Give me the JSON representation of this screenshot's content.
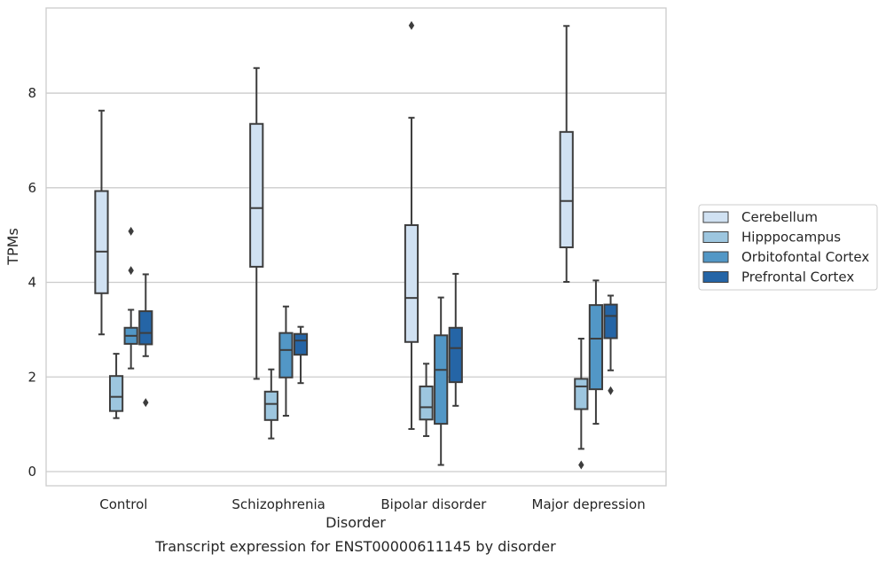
{
  "chart_data": {
    "type": "box",
    "xlabel": "Disorder",
    "ylabel": "TPMs",
    "caption": "Transcript expression for ENST00000611145 by disorder",
    "categories": [
      "Control",
      "Schizophrenia",
      "Bipolar disorder",
      "Major depression"
    ],
    "ylim": [
      -0.3,
      9.8
    ],
    "yticks": [
      0,
      2,
      4,
      6,
      8
    ],
    "grid": true,
    "legend_position": "right",
    "series": [
      {
        "name": "Cerebellum",
        "color": "#d0e1f2",
        "boxes": [
          {
            "min": 2.9,
            "q1": 3.77,
            "median": 4.65,
            "q3": 5.93,
            "max": 7.63,
            "outliers": []
          },
          {
            "min": 1.96,
            "q1": 4.33,
            "median": 5.57,
            "q3": 7.35,
            "max": 8.53,
            "outliers": []
          },
          {
            "min": 0.9,
            "q1": 2.74,
            "median": 3.67,
            "q3": 5.21,
            "max": 7.48,
            "outliers": [
              9.43
            ]
          },
          {
            "min": 4.01,
            "q1": 4.74,
            "median": 5.72,
            "q3": 7.18,
            "max": 9.42,
            "outliers": []
          }
        ]
      },
      {
        "name": "Hipppocampus",
        "color": "#9dc6df",
        "boxes": [
          {
            "min": 1.13,
            "q1": 1.28,
            "median": 1.58,
            "q3": 2.02,
            "max": 2.49,
            "outliers": []
          },
          {
            "min": 0.7,
            "q1": 1.09,
            "median": 1.43,
            "q3": 1.69,
            "max": 2.16,
            "outliers": []
          },
          {
            "min": 0.75,
            "q1": 1.1,
            "median": 1.36,
            "q3": 1.8,
            "max": 2.28,
            "outliers": []
          },
          {
            "min": 0.48,
            "q1": 1.32,
            "median": 1.8,
            "q3": 1.96,
            "max": 2.81,
            "outliers": [
              0.14
            ]
          }
        ]
      },
      {
        "name": "Orbitofontal Cortex",
        "color": "#5297c6",
        "boxes": [
          {
            "min": 2.18,
            "q1": 2.7,
            "median": 2.87,
            "q3": 3.04,
            "max": 3.42,
            "outliers": [
              5.08,
              4.25
            ]
          },
          {
            "min": 1.18,
            "q1": 1.99,
            "median": 2.57,
            "q3": 2.93,
            "max": 3.49,
            "outliers": []
          },
          {
            "min": 0.14,
            "q1": 1.01,
            "median": 2.15,
            "q3": 2.88,
            "max": 3.68,
            "outliers": []
          },
          {
            "min": 1.01,
            "q1": 1.74,
            "median": 2.81,
            "q3": 3.52,
            "max": 4.04,
            "outliers": []
          }
        ]
      },
      {
        "name": "Prefrontal Cortex",
        "color": "#2565a6",
        "boxes": [
          {
            "min": 2.44,
            "q1": 2.69,
            "median": 2.93,
            "q3": 3.39,
            "max": 4.17,
            "outliers": [
              1.46
            ]
          },
          {
            "min": 1.87,
            "q1": 2.47,
            "median": 2.77,
            "q3": 2.91,
            "max": 3.06,
            "outliers": []
          },
          {
            "min": 1.39,
            "q1": 1.89,
            "median": 2.61,
            "q3": 3.04,
            "max": 4.18,
            "outliers": []
          },
          {
            "min": 2.14,
            "q1": 2.82,
            "median": 3.29,
            "q3": 3.53,
            "max": 3.72,
            "outliers": [
              1.71
            ]
          }
        ]
      }
    ]
  }
}
